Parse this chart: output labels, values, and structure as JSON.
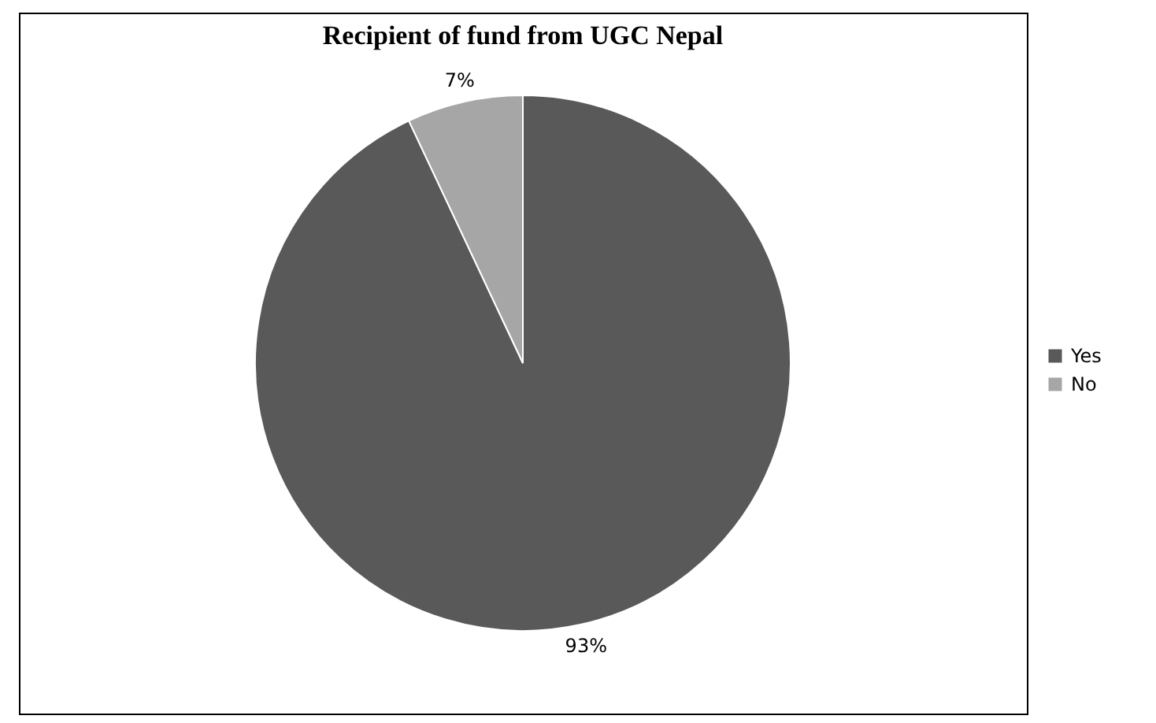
{
  "chart_data": {
    "type": "pie",
    "title": "Recipient of fund from UGC Nepal",
    "categories": [
      "Yes",
      "No"
    ],
    "values": [
      93,
      7
    ],
    "colors": [
      "#595959",
      "#a6a6a6"
    ],
    "value_labels": [
      "93%",
      "7%"
    ],
    "legend": "right"
  }
}
